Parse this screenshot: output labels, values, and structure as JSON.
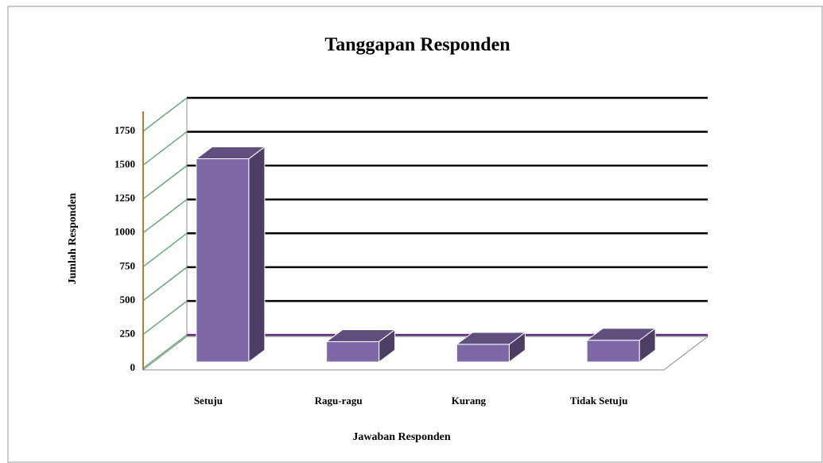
{
  "chart_data": {
    "type": "bar3d",
    "title": "Tanggapan Responden",
    "x_label": "Jawaban Responden",
    "y_label": "Jumlah Responden",
    "categories": [
      "Setuju",
      "Ragu-ragu",
      "Kurang",
      "Tidak Setuju"
    ],
    "values": [
      1500,
      150,
      130,
      160
    ],
    "color": "#7f68a8",
    "ylim": [
      0,
      1750
    ],
    "yticks": [
      0,
      250,
      500,
      750,
      1000,
      1250,
      1500,
      1750
    ],
    "grid": true
  }
}
